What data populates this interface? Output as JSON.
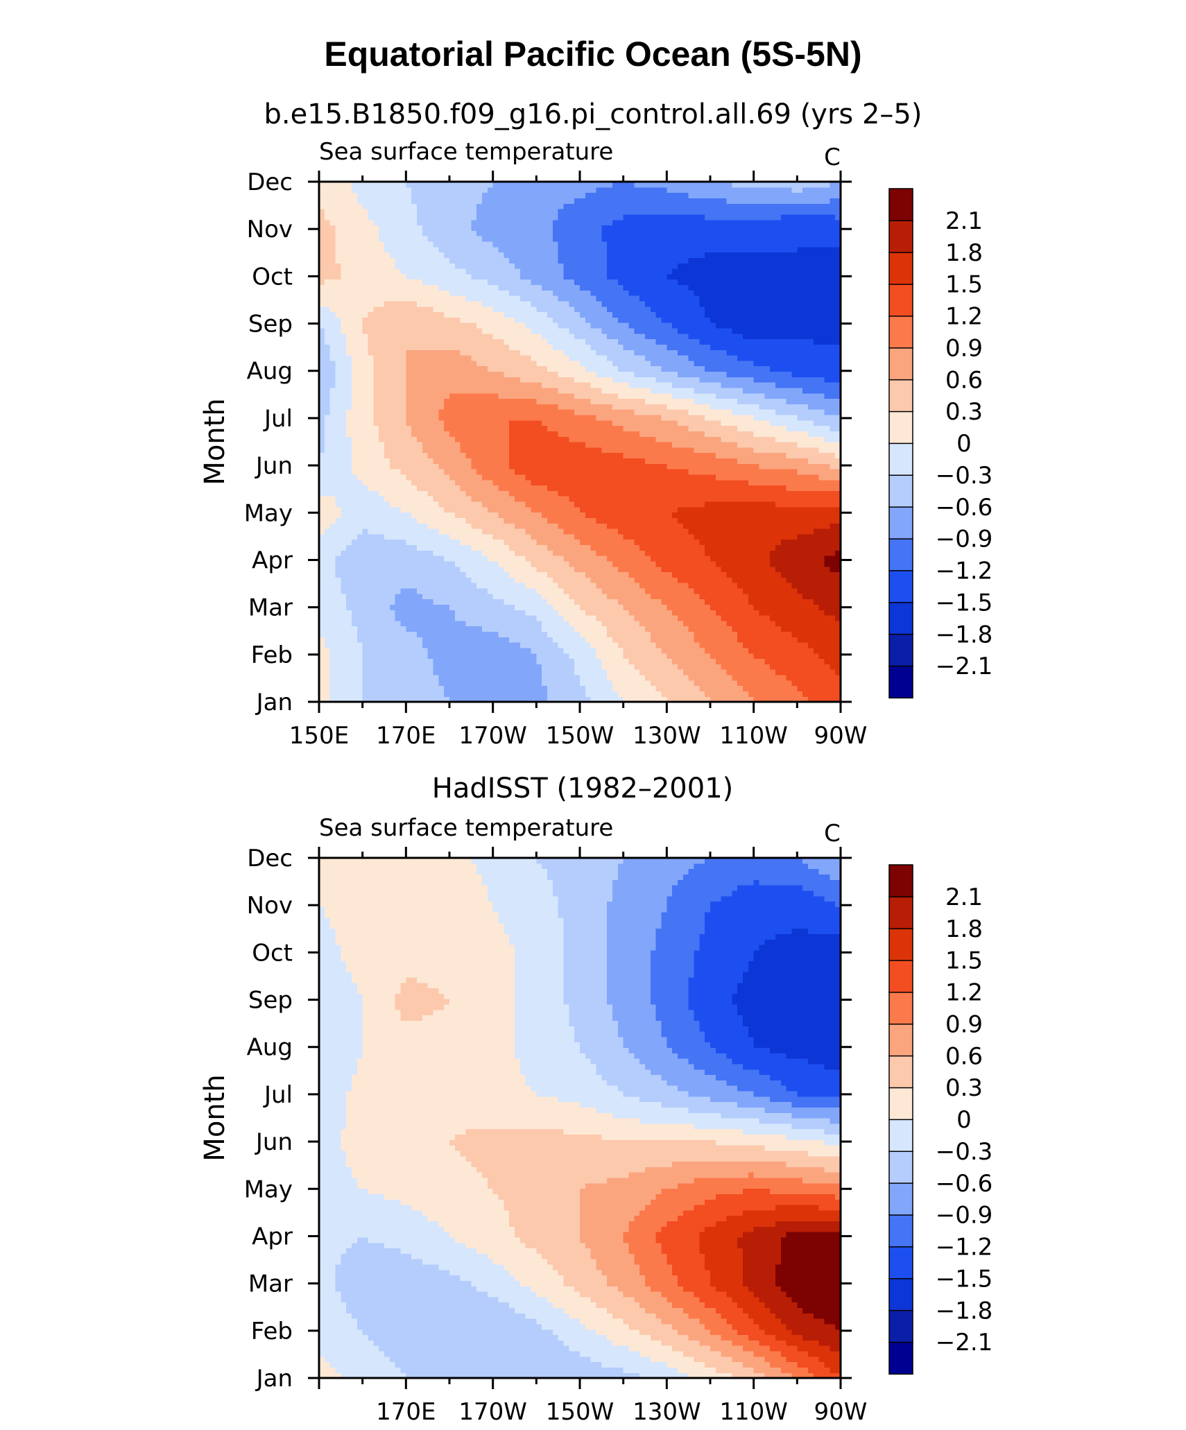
{
  "figure": {
    "title": "Equatorial Pacific Ocean (5S-5N)"
  },
  "chart_data": [
    {
      "type": "heatmap",
      "title": "b.e15.B1850.f09_g16.pi_control.all.69 (yrs 2–5)",
      "left_string": "Sea surface temperature",
      "right_string": "C",
      "ylabel": "Month",
      "xlabel": "",
      "x_tick_labels": [
        "150E",
        "170E",
        "170W",
        "150W",
        "130W",
        "110W",
        "90W"
      ],
      "y_tick_labels": [
        "Jan",
        "Feb",
        "Mar",
        "Apr",
        "May",
        "Jun",
        "Jul",
        "Aug",
        "Sep",
        "Oct",
        "Nov",
        "Dec"
      ],
      "x": [
        150,
        160,
        170,
        180,
        190,
        200,
        210,
        220,
        230,
        240,
        250,
        260,
        270
      ],
      "y": [
        "Jan",
        "Feb",
        "Mar",
        "Apr",
        "May",
        "Jun",
        "Jul",
        "Aug",
        "Sep",
        "Oct",
        "Nov",
        "Dec"
      ],
      "z": [
        [
          0.1,
          -0.3,
          -0.4,
          -0.6,
          -0.9,
          -0.7,
          -0.4,
          0.0,
          0.3,
          0.6,
          0.9,
          1.1,
          1.4
        ],
        [
          0.1,
          -0.3,
          -0.5,
          -0.7,
          -0.8,
          -0.6,
          -0.2,
          0.3,
          0.6,
          0.9,
          1.2,
          1.4,
          1.6
        ],
        [
          -0.1,
          -0.4,
          -0.7,
          -0.6,
          -0.4,
          -0.2,
          0.3,
          0.6,
          0.9,
          1.2,
          1.5,
          1.7,
          1.9
        ],
        [
          -0.2,
          -0.5,
          -0.5,
          -0.3,
          0.0,
          0.4,
          0.7,
          1.0,
          1.3,
          1.5,
          1.7,
          2.0,
          2.2
        ],
        [
          0.2,
          -0.2,
          0.0,
          0.3,
          0.6,
          0.9,
          1.2,
          1.4,
          1.5,
          1.6,
          1.7,
          1.6,
          1.7
        ],
        [
          -0.3,
          0.1,
          0.4,
          0.7,
          1.1,
          1.4,
          1.4,
          1.3,
          1.2,
          1.1,
          0.9,
          0.8,
          0.5
        ],
        [
          -0.4,
          0.2,
          0.6,
          1.0,
          1.2,
          1.2,
          1.0,
          0.8,
          0.6,
          0.3,
          0.0,
          -0.3,
          -0.6
        ],
        [
          -0.6,
          0.2,
          0.6,
          0.8,
          0.6,
          0.4,
          0.1,
          -0.3,
          -0.6,
          -0.9,
          -1.1,
          -1.3,
          -1.4
        ],
        [
          -0.3,
          0.3,
          0.6,
          0.4,
          0.2,
          -0.1,
          -0.5,
          -0.9,
          -1.2,
          -1.5,
          -1.7,
          -1.6,
          -1.6
        ],
        [
          0.4,
          0.2,
          0.0,
          -0.2,
          -0.4,
          -0.7,
          -1.0,
          -1.3,
          -1.5,
          -1.6,
          -1.6,
          -1.5,
          -1.7
        ],
        [
          0.4,
          0.1,
          -0.2,
          -0.5,
          -0.7,
          -0.8,
          -1.1,
          -1.3,
          -1.4,
          -1.4,
          -1.4,
          -1.5,
          -1.4
        ],
        [
          0.2,
          -0.1,
          -0.3,
          -0.5,
          -0.6,
          -0.8,
          -0.8,
          -0.9,
          -0.8,
          -0.6,
          -0.5,
          -0.4,
          -0.6
        ]
      ],
      "colorbar": {
        "levels": [
          -2.1,
          -1.8,
          -1.5,
          -1.2,
          -0.9,
          -0.6,
          -0.3,
          0,
          0.3,
          0.6,
          0.9,
          1.2,
          1.5,
          1.8,
          2.1
        ],
        "labels": [
          "-2.1",
          "-1.8",
          "-1.5",
          "-1.2",
          "-0.9",
          "-0.6",
          "-0.3",
          "0",
          "0.3",
          "0.6",
          "0.9",
          "1.2",
          "1.5",
          "1.8",
          "2.1"
        ],
        "colors": [
          "#000090",
          "#0a1ea8",
          "#0d36d6",
          "#1d4ff0",
          "#4574f5",
          "#82a6fa",
          "#b4cdfc",
          "#d6e6fd",
          "#fde8d6",
          "#fcc9ad",
          "#fba57f",
          "#fb7a4b",
          "#f34d22",
          "#dc3309",
          "#b81e05",
          "#7d0202"
        ]
      }
    },
    {
      "type": "heatmap",
      "title": "HadISST (1982–2001)",
      "left_string": "Sea surface temperature",
      "right_string": "C",
      "ylabel": "Month",
      "xlabel": "",
      "x_tick_labels": [
        "",
        "170E",
        "170W",
        "150W",
        "130W",
        "110W",
        "90W"
      ],
      "y_tick_labels": [
        "Jan",
        "Feb",
        "Mar",
        "Apr",
        "May",
        "Jun",
        "Jul",
        "Aug",
        "Sep",
        "Oct",
        "Nov",
        "Dec"
      ],
      "x": [
        150,
        160,
        170,
        180,
        190,
        200,
        210,
        220,
        230,
        240,
        250,
        260,
        270
      ],
      "y": [
        "Jan",
        "Feb",
        "Mar",
        "Apr",
        "May",
        "Jun",
        "Jul",
        "Aug",
        "Sep",
        "Oct",
        "Nov",
        "Dec"
      ],
      "z": [
        [
          0.1,
          -0.1,
          -0.3,
          -0.5,
          -0.6,
          -0.6,
          -0.5,
          -0.4,
          -0.2,
          0.1,
          0.4,
          0.9,
          1.5
        ],
        [
          -0.1,
          -0.3,
          -0.5,
          -0.6,
          -0.6,
          -0.4,
          -0.1,
          0.2,
          0.5,
          0.9,
          1.4,
          1.9,
          2.1
        ],
        [
          -0.2,
          -0.5,
          -0.5,
          -0.4,
          -0.2,
          0.1,
          0.4,
          0.7,
          1.1,
          1.5,
          1.9,
          2.3,
          2.4
        ],
        [
          -0.2,
          -0.3,
          -0.2,
          0.0,
          0.2,
          0.4,
          0.6,
          0.9,
          1.3,
          1.6,
          1.9,
          2.2,
          2.2
        ],
        [
          -0.1,
          0.0,
          0.1,
          0.2,
          0.3,
          0.4,
          0.6,
          0.7,
          0.9,
          1.1,
          1.2,
          1.1,
          1.0
        ],
        [
          -0.1,
          0.1,
          0.2,
          0.3,
          0.4,
          0.4,
          0.4,
          0.3,
          0.3,
          0.3,
          0.2,
          0.1,
          -0.1
        ],
        [
          -0.2,
          0.1,
          0.2,
          0.2,
          0.1,
          0.0,
          -0.1,
          -0.3,
          -0.5,
          -0.7,
          -0.9,
          -1.2,
          -1.3
        ],
        [
          -0.3,
          0.0,
          0.2,
          0.2,
          0.1,
          -0.1,
          -0.3,
          -0.6,
          -0.9,
          -1.2,
          -1.5,
          -1.6,
          -1.7
        ],
        [
          -0.2,
          0.0,
          0.4,
          0.3,
          0.1,
          -0.1,
          -0.4,
          -0.7,
          -1.0,
          -1.4,
          -1.6,
          -1.8,
          -1.8
        ],
        [
          -0.1,
          0.1,
          0.2,
          0.2,
          0.1,
          -0.1,
          -0.4,
          -0.7,
          -1.0,
          -1.3,
          -1.5,
          -1.6,
          -1.7
        ],
        [
          0.0,
          0.1,
          0.2,
          0.2,
          0.0,
          -0.2,
          -0.4,
          -0.7,
          -0.9,
          -1.2,
          -1.4,
          -1.4,
          -1.2
        ],
        [
          0.1,
          0.1,
          0.1,
          0.1,
          -0.1,
          -0.3,
          -0.4,
          -0.6,
          -0.8,
          -0.9,
          -1.0,
          -0.9,
          -0.6
        ]
      ],
      "colorbar": {
        "levels": [
          -2.1,
          -1.8,
          -1.5,
          -1.2,
          -0.9,
          -0.6,
          -0.3,
          0,
          0.3,
          0.6,
          0.9,
          1.2,
          1.5,
          1.8,
          2.1
        ],
        "labels": [
          "-2.1",
          "-1.8",
          "-1.5",
          "-1.2",
          "-0.9",
          "-0.6",
          "-0.3",
          "0",
          "0.3",
          "0.6",
          "0.9",
          "1.2",
          "1.5",
          "1.8",
          "2.1"
        ],
        "colors": [
          "#000090",
          "#0a1ea8",
          "#0d36d6",
          "#1d4ff0",
          "#4574f5",
          "#82a6fa",
          "#b4cdfc",
          "#d6e6fd",
          "#fde8d6",
          "#fcc9ad",
          "#fba57f",
          "#fb7a4b",
          "#f34d22",
          "#dc3309",
          "#b81e05",
          "#7d0202"
        ]
      }
    }
  ]
}
